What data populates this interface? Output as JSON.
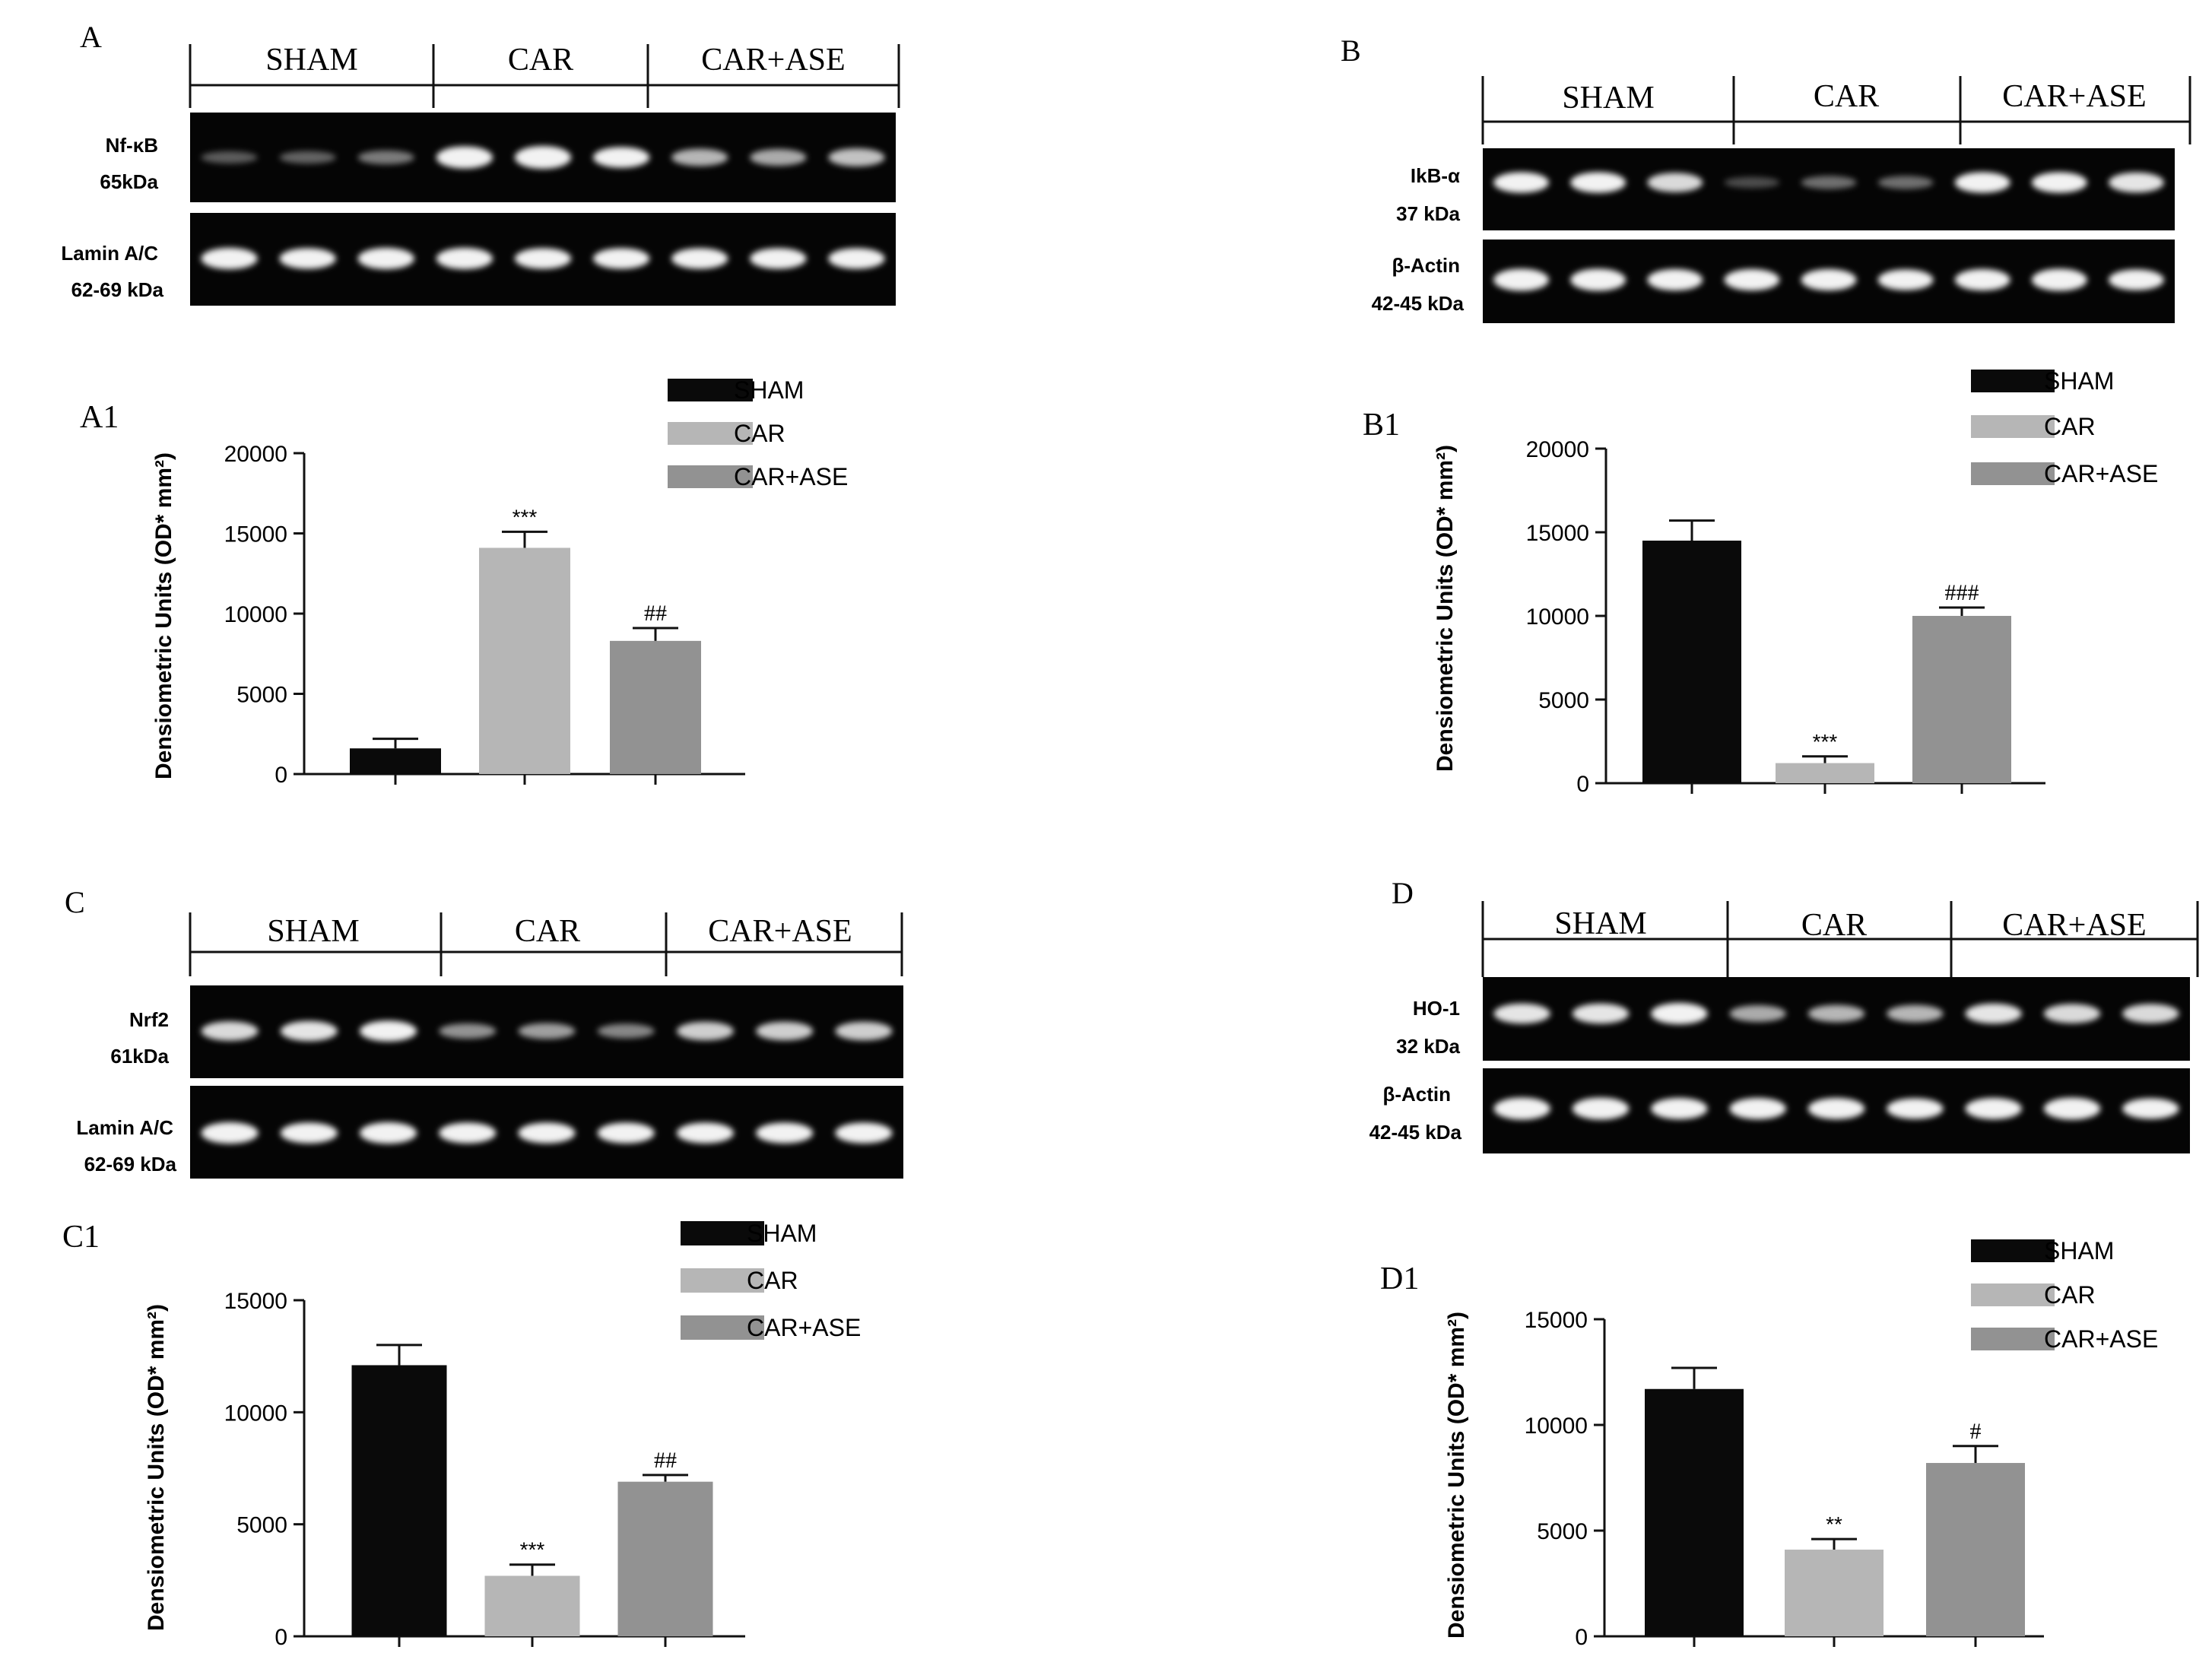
{
  "colors": {
    "sham": "#0a0a0a",
    "car": "#b6b6b6",
    "car_ase": "#929292",
    "axis": "#111111",
    "blot_bg": "#050505",
    "band": "#f2f2f2"
  },
  "groups": [
    "SHAM",
    "CAR",
    "CAR+ASE"
  ],
  "panels": [
    {
      "blot": {
        "letter": "A",
        "proteins": [
          {
            "name": "Nf-κB",
            "size": "65kDa",
            "lane_intensity": [
              0.22,
              0.25,
              0.35,
              0.95,
              1.0,
              0.85,
              0.6,
              0.55,
              0.65
            ]
          },
          {
            "name": "Lamin A/C",
            "size": "62-69 kDa",
            "lane_intensity": [
              0.9,
              0.85,
              0.9,
              0.9,
              0.85,
              0.85,
              0.85,
              0.85,
              0.85
            ]
          }
        ]
      },
      "chart_data": {
        "type": "bar",
        "label": "A1",
        "ylabel": "Densiometric Units (OD* mm²)",
        "categories": [
          "SHAM",
          "CAR",
          "CAR+ASE"
        ],
        "values": [
          1600,
          14100,
          8300
        ],
        "errors": [
          600,
          1000,
          800
        ],
        "annotations": [
          "",
          "***",
          "##"
        ],
        "ylim": [
          0,
          20000
        ],
        "yticks": [
          "0",
          "5000",
          "10000",
          "15000",
          "20000"
        ],
        "legend": [
          "SHAM",
          "CAR",
          "CAR+ASE"
        ]
      }
    },
    {
      "blot": {
        "letter": "B",
        "proteins": [
          {
            "name": "IkB-α",
            "size": "37 kDa",
            "lane_intensity": [
              0.85,
              0.85,
              0.75,
              0.15,
              0.3,
              0.3,
              0.85,
              0.85,
              0.8
            ]
          },
          {
            "name": "β-Actin",
            "size": "42-45 kDa",
            "lane_intensity": [
              0.95,
              0.95,
              0.9,
              0.9,
              0.9,
              0.85,
              0.9,
              0.95,
              0.85
            ]
          }
        ]
      },
      "chart_data": {
        "type": "bar",
        "label": "B1",
        "ylabel": "Densiometric Units (OD* mm²)",
        "categories": [
          "SHAM",
          "CAR",
          "CAR+ASE"
        ],
        "values": [
          14500,
          1200,
          10000
        ],
        "errors": [
          1200,
          400,
          500
        ],
        "annotations": [
          "",
          "***",
          "###"
        ],
        "ylim": [
          0,
          20000
        ],
        "yticks": [
          "0",
          "5000",
          "10000",
          "15000",
          "20000"
        ],
        "legend": [
          "SHAM",
          "CAR",
          "CAR+ASE"
        ]
      }
    },
    {
      "blot": {
        "letter": "C",
        "proteins": [
          {
            "name": "Nrf2",
            "size": "61kDa",
            "lane_intensity": [
              0.75,
              0.8,
              0.85,
              0.45,
              0.5,
              0.4,
              0.7,
              0.7,
              0.7
            ]
          },
          {
            "name": "Lamin A/C",
            "size": "62-69 kDa",
            "lane_intensity": [
              0.9,
              0.85,
              0.9,
              0.85,
              0.85,
              0.85,
              0.85,
              0.85,
              0.85
            ]
          }
        ]
      },
      "chart_data": {
        "type": "bar",
        "label": "C1",
        "ylabel": "Densiometric Units (OD* mm²)",
        "categories": [
          "SHAM",
          "CAR",
          "CAR+ASE"
        ],
        "values": [
          12100,
          2700,
          6900
        ],
        "errors": [
          900,
          500,
          300
        ],
        "annotations": [
          "",
          "***",
          "##"
        ],
        "ylim": [
          0,
          15000
        ],
        "yticks": [
          "0",
          "5000",
          "10000",
          "15000"
        ],
        "legend": [
          "SHAM",
          "CAR",
          "CAR+ASE"
        ]
      }
    },
    {
      "blot": {
        "letter": "D",
        "proteins": [
          {
            "name": "HO-1",
            "size": "32 kDa",
            "lane_intensity": [
              0.8,
              0.8,
              0.9,
              0.55,
              0.6,
              0.6,
              0.8,
              0.75,
              0.75
            ]
          },
          {
            "name": "β-Actin",
            "size": "42-45 kDa",
            "lane_intensity": [
              0.95,
              0.95,
              0.9,
              0.9,
              0.9,
              0.85,
              0.9,
              0.95,
              0.85
            ]
          }
        ]
      },
      "chart_data": {
        "type": "bar",
        "label": "D1",
        "ylabel": "Densiometric Units (OD* mm²)",
        "categories": [
          "SHAM",
          "CAR",
          "CAR+ASE"
        ],
        "values": [
          11700,
          4100,
          8200
        ],
        "errors": [
          1000,
          500,
          800
        ],
        "annotations": [
          "",
          "**",
          "#"
        ],
        "ylim": [
          0,
          15000
        ],
        "yticks": [
          "0",
          "5000",
          "10000",
          "15000"
        ],
        "legend": [
          "SHAM",
          "CAR",
          "CAR+ASE"
        ]
      }
    }
  ]
}
